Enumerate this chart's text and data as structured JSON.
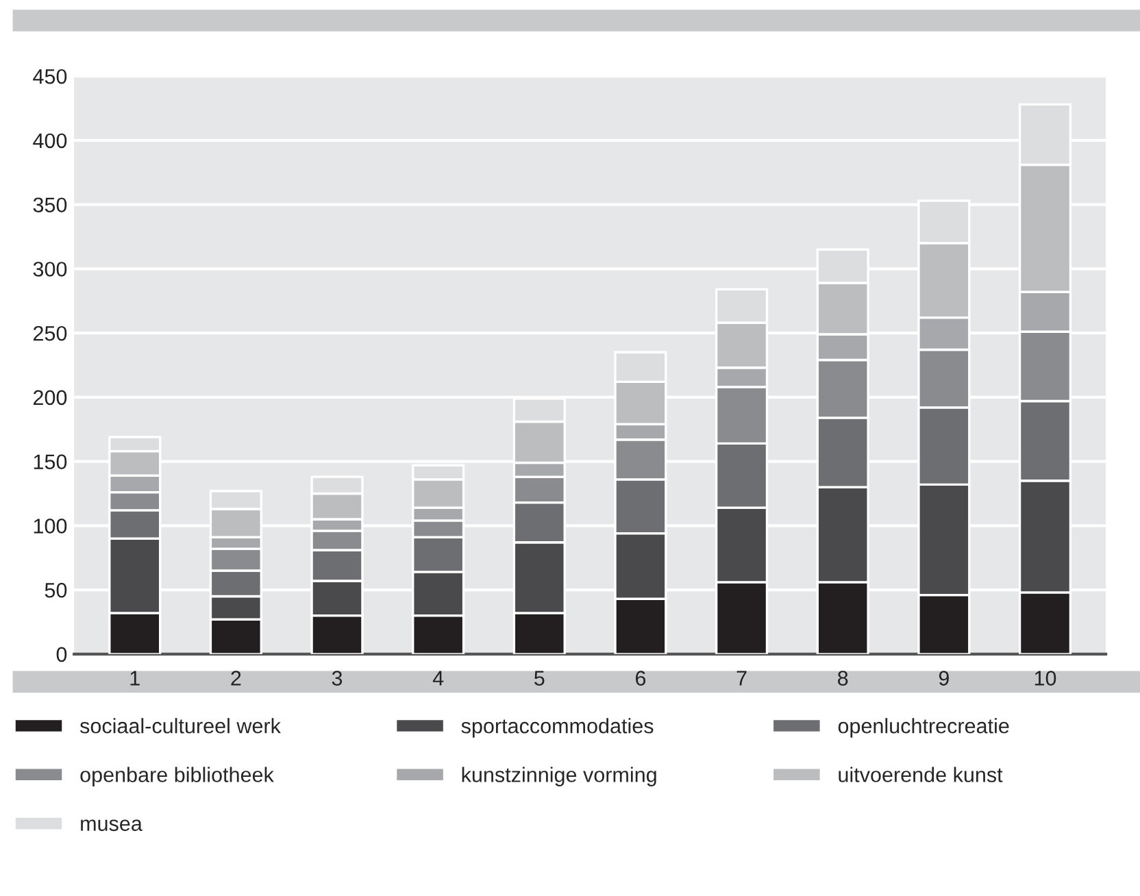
{
  "chart_data": {
    "type": "bar",
    "stacked": true,
    "categories": [
      "1",
      "2",
      "3",
      "4",
      "5",
      "6",
      "7",
      "8",
      "9",
      "10"
    ],
    "series": [
      {
        "name": "sociaal-cultureel werk",
        "color": "#231f20",
        "values": [
          32,
          27,
          30,
          30,
          32,
          43,
          56,
          56,
          46,
          48
        ]
      },
      {
        "name": "sportaccommodaties",
        "color": "#4a4a4c",
        "values": [
          58,
          18,
          27,
          34,
          55,
          51,
          58,
          74,
          86,
          87
        ]
      },
      {
        "name": "openluchtrecreatie",
        "color": "#6d6e71",
        "values": [
          22,
          20,
          24,
          27,
          31,
          42,
          50,
          54,
          60,
          62
        ]
      },
      {
        "name": "openbare bibliotheek",
        "color": "#8a8b8e",
        "values": [
          14,
          17,
          15,
          13,
          20,
          31,
          44,
          45,
          45,
          54
        ]
      },
      {
        "name": "kunstzinnige vorming",
        "color": "#a7a8ab",
        "values": [
          13,
          9,
          9,
          10,
          11,
          12,
          15,
          20,
          25,
          31
        ]
      },
      {
        "name": "uitvoerende kunst",
        "color": "#bcbdbf",
        "values": [
          19,
          22,
          20,
          22,
          32,
          33,
          35,
          40,
          58,
          99
        ]
      },
      {
        "name": "musea",
        "color": "#dcdddf",
        "values": [
          11,
          14,
          13,
          11,
          18,
          23,
          26,
          26,
          33,
          47
        ]
      }
    ],
    "ylim": [
      0,
      450
    ],
    "yticks": [
      0,
      50,
      100,
      150,
      200,
      250,
      300,
      350,
      400,
      450
    ],
    "grid": "y",
    "legend": "bottom"
  }
}
